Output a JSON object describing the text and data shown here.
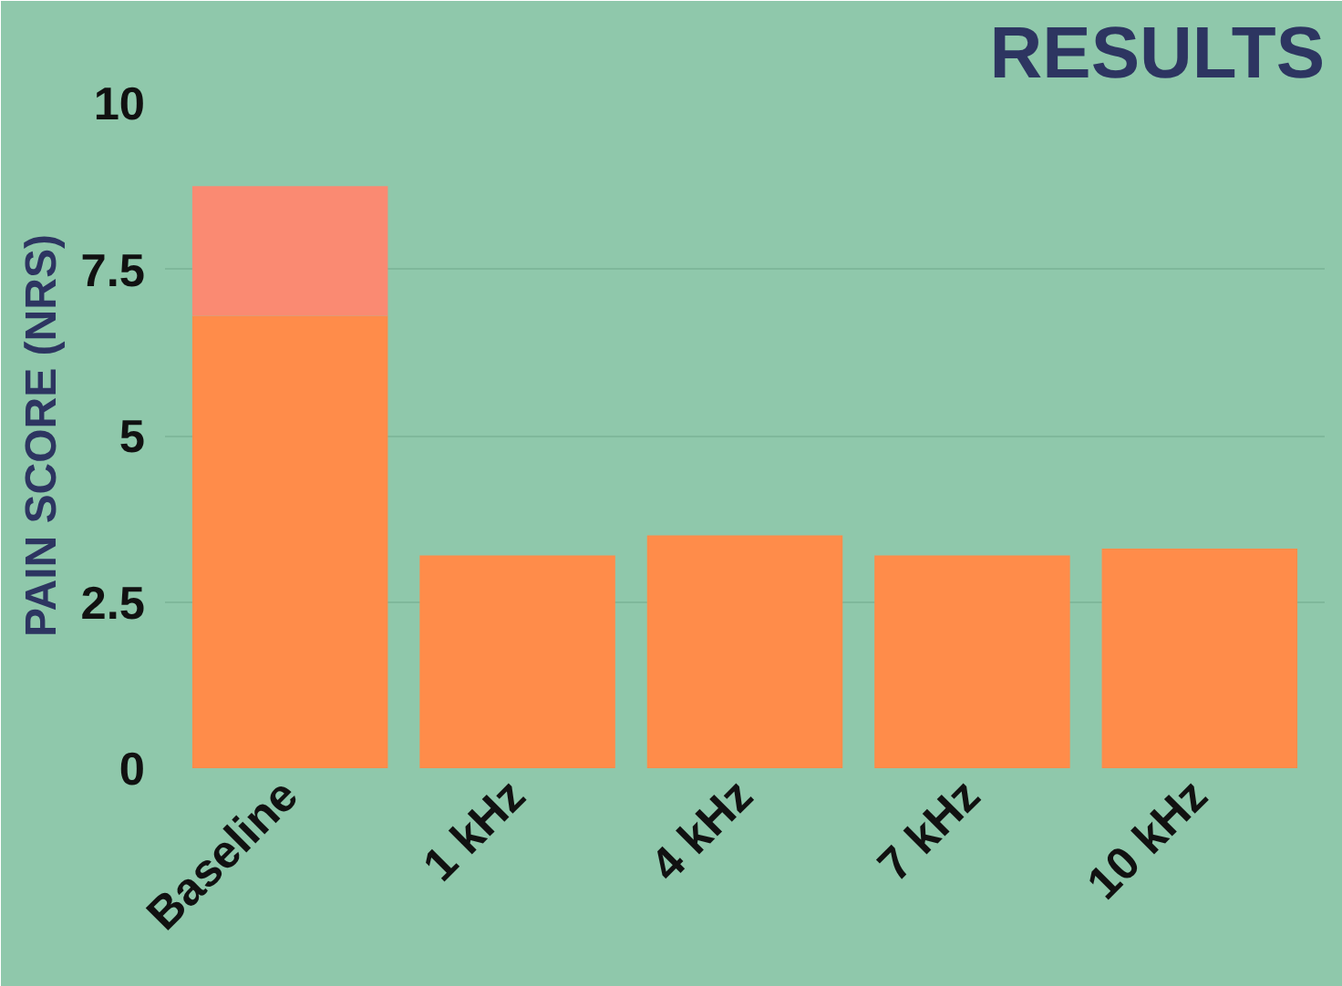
{
  "chart_data": {
    "type": "bar",
    "title": "RESULTS",
    "ylabel": "PAIN SCORE (NRS)",
    "categories": [
      "Baseline",
      "1 kHz",
      "4 kHz",
      "7 kHz",
      "10 kHz"
    ],
    "stacked": true,
    "series": [
      {
        "color": "#ff8c4a",
        "values": [
          6.8,
          3.2,
          3.5,
          3.2,
          3.3
        ]
      },
      {
        "color": "#fa8a72",
        "values": [
          1.95,
          null,
          null,
          null,
          null
        ]
      }
    ],
    "ylim": [
      0,
      10
    ],
    "yticks": [
      0,
      2.5,
      5,
      7.5,
      10
    ],
    "grid": "y"
  }
}
